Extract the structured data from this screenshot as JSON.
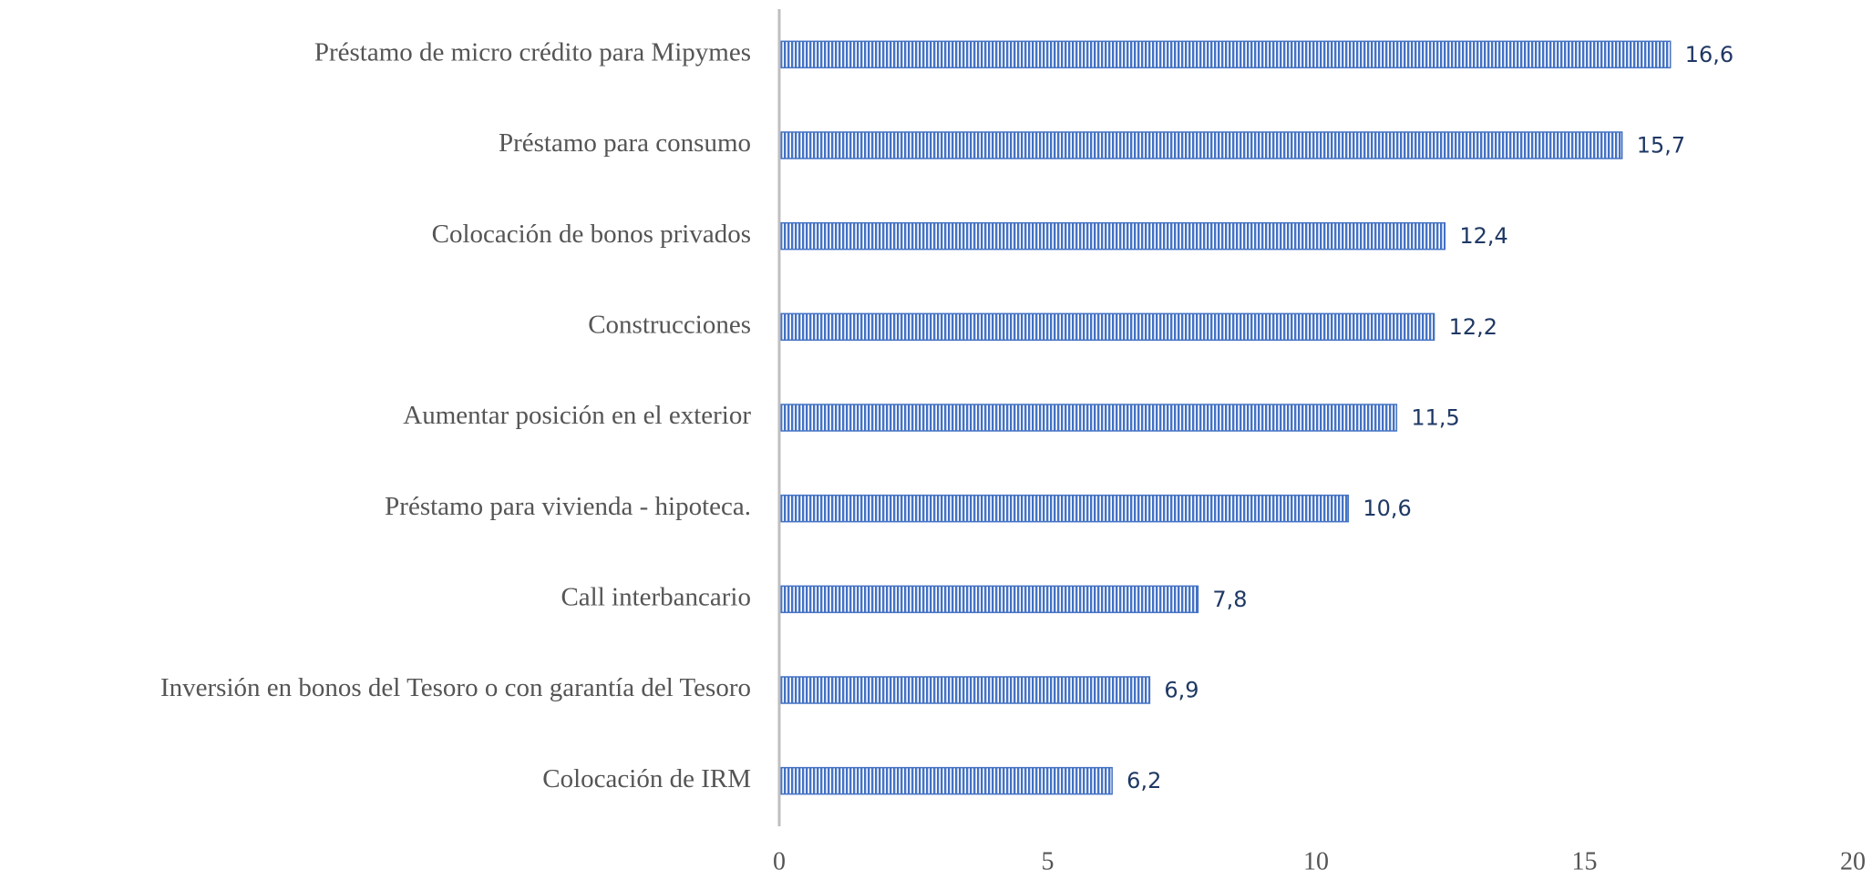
{
  "chart_data": {
    "type": "bar",
    "orientation": "horizontal",
    "categories": [
      "Préstamo de micro crédito para Mipymes",
      "Préstamo para consumo",
      "Colocación de bonos privados",
      "Construcciones",
      "Aumentar posición en el exterior",
      "Préstamo para vivienda - hipoteca.",
      "Call interbancario",
      "Inversión en bonos del Tesoro o con garantía del Tesoro",
      "Colocación de IRM"
    ],
    "values": [
      16.6,
      15.7,
      12.4,
      12.2,
      11.5,
      10.6,
      7.8,
      6.9,
      6.2
    ],
    "value_labels": [
      "16,6",
      "15,7",
      "12,4",
      "12,2",
      "11,5",
      "10,6",
      "7,8",
      "6,9",
      "6,2"
    ],
    "color": "#4472c4",
    "xlim": [
      0,
      20
    ],
    "xticks": [
      0,
      5,
      10,
      15,
      20
    ],
    "grid": false
  }
}
